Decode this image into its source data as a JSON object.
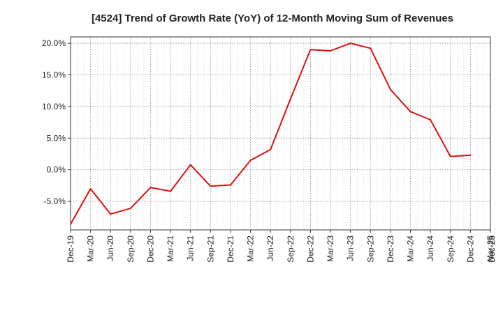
{
  "chart_data": {
    "type": "line",
    "title": "[4524]  Trend of Growth Rate (YoY) of 12-Month Moving Sum of Revenues",
    "xlabel": "",
    "ylabel": "",
    "ylim": [
      -9.5,
      21.0
    ],
    "y_ticks": [
      20.0,
      15.0,
      10.0,
      5.0,
      0.0,
      -5.0
    ],
    "y_tick_labels": [
      "20.0%",
      "15.0%",
      "10.0%",
      "5.0%",
      "0.0%",
      "-5.0%"
    ],
    "x_tick_labels": [
      "Dec-19",
      "Mar-20",
      "Jun-20",
      "Sep-20",
      "Dec-20",
      "Mar-21",
      "Jun-21",
      "Sep-21",
      "Dec-21",
      "Mar-22",
      "Jun-22",
      "Sep-22",
      "Dec-22",
      "Mar-23",
      "Jun-23",
      "Sep-23",
      "Dec-23",
      "Mar-24",
      "Jun-24",
      "Sep-24",
      "Dec-24",
      "Mar-25",
      "Dec-25"
    ],
    "grid": true,
    "series": [
      {
        "name": "",
        "color": "#e01010",
        "x": [
          "Dec-19",
          "Mar-20",
          "Jun-20",
          "Sep-20",
          "Dec-20",
          "Mar-21",
          "Jun-21",
          "Sep-21",
          "Dec-21",
          "Mar-22",
          "Jun-22",
          "Sep-22",
          "Dec-22",
          "Mar-23",
          "Jun-23",
          "Sep-23",
          "Dec-23",
          "Mar-24",
          "Jun-24",
          "Sep-24",
          "Dec-24"
        ],
        "values": [
          -8.6,
          -3.0,
          -7.0,
          -6.1,
          -2.8,
          -3.4,
          0.8,
          -2.6,
          -2.4,
          1.5,
          3.2,
          11.2,
          19.0,
          18.8,
          20.0,
          19.2,
          12.7,
          9.2,
          7.9,
          2.1,
          2.3
        ]
      }
    ]
  }
}
